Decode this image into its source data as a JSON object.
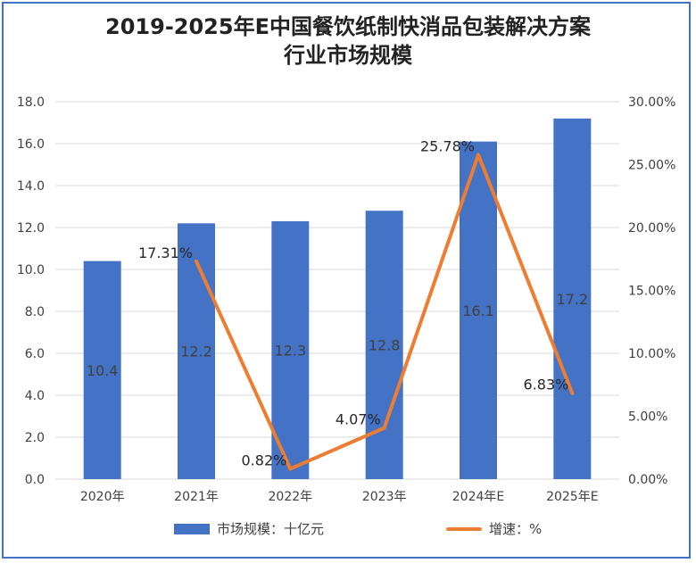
{
  "title_line1": "2019-2025年E中国餐饮纸制快消品包装解决方案",
  "title_line2": "行业市场规模",
  "legend": {
    "bar_label": "市场规模：十亿元",
    "line_label": "增速：%"
  },
  "colors": {
    "bar": "#4472c4",
    "line": "#ed7d31",
    "grid": "#d9d9d9",
    "text": "#404040"
  },
  "chart_data": {
    "type": "bar",
    "categories": [
      "2020年",
      "2021年",
      "2022年",
      "2023年",
      "2024年E",
      "2025年E"
    ],
    "series": [
      {
        "name": "市场规模：十亿元",
        "type": "bar",
        "axis": "left",
        "values": [
          10.4,
          12.2,
          12.3,
          12.8,
          16.1,
          17.2
        ],
        "labels": [
          "10.4",
          "12.2",
          "12.3",
          "12.8",
          "16.1",
          "17.2"
        ]
      },
      {
        "name": "增速：%",
        "type": "line",
        "axis": "right",
        "values": [
          null,
          17.31,
          0.82,
          4.07,
          25.78,
          6.83
        ],
        "labels": [
          "",
          "17.31%",
          "0.82%",
          "4.07%",
          "25.78%",
          "6.83%"
        ]
      }
    ],
    "ylim": [
      0,
      18
    ],
    "y_ticks": [
      "0.0",
      "2.0",
      "4.0",
      "6.0",
      "8.0",
      "10.0",
      "12.0",
      "14.0",
      "16.0",
      "18.0"
    ],
    "y2lim": [
      0,
      30
    ],
    "y2_ticks": [
      "0.00%",
      "5.00%",
      "10.00%",
      "15.00%",
      "20.00%",
      "25.00%",
      "30.00%"
    ],
    "grid": true,
    "legend_position": "bottom"
  }
}
